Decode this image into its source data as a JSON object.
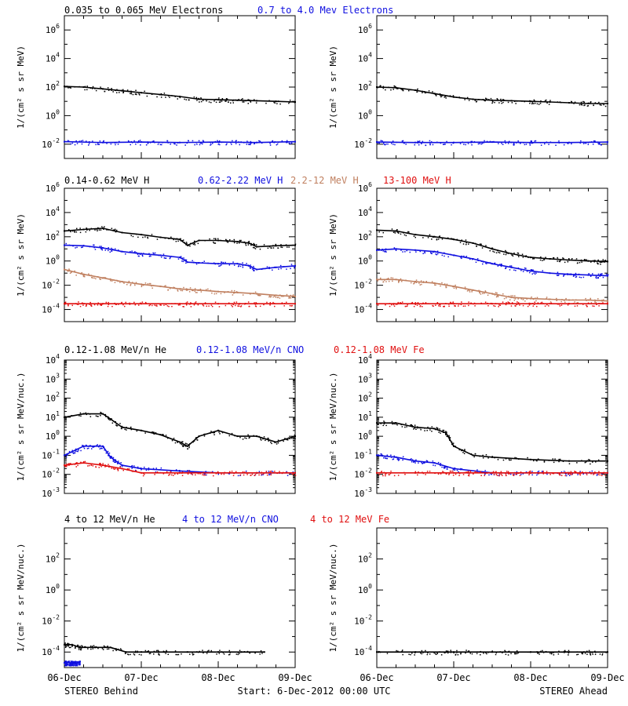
{
  "colors": {
    "black": "#000000",
    "blue": "#1010e0",
    "tan": "#c08060",
    "red": "#e01010"
  },
  "footer": {
    "left": "STEREO Behind",
    "center": "Start:  6-Dec-2012 00:00 UTC",
    "right": "STEREO Ahead"
  },
  "x_axis": {
    "ticks": [
      "06-Dec",
      "07-Dec",
      "08-Dec",
      "09-Dec"
    ],
    "range_days": [
      0,
      3
    ]
  },
  "chart_data": [
    {
      "type": "scatter",
      "row": 1,
      "panel": "STEREO Behind",
      "ylabel": "1/(cm² s sr MeV)",
      "yscale": "log",
      "ylim_exp": [
        -3,
        7
      ],
      "ytick_exps": [
        -2,
        0,
        2,
        4,
        6
      ],
      "titles": [
        {
          "text": "0.035 to 0.065 MeV Electrons",
          "color": "#000000"
        },
        {
          "text": "0.7 to 4.0 Mev Electrons",
          "color": "#1010e0"
        }
      ],
      "series": [
        {
          "color": "#000000",
          "x": [
            0,
            0.25,
            0.5,
            0.75,
            1.0,
            1.25,
            1.5,
            1.75,
            2.0,
            2.25,
            2.5,
            2.75,
            3.0
          ],
          "y": [
            110,
            100,
            75,
            55,
            40,
            30,
            22,
            14,
            13,
            12,
            11,
            10,
            9
          ]
        },
        {
          "color": "#1010e0",
          "x": [
            0,
            0.5,
            1.0,
            1.5,
            2.0,
            2.5,
            3.0
          ],
          "y": [
            0.015,
            0.013,
            0.014,
            0.013,
            0.014,
            0.013,
            0.015
          ]
        }
      ]
    },
    {
      "type": "scatter",
      "row": 1,
      "panel": "STEREO Ahead",
      "ylabel": "1/(cm² s sr MeV)",
      "yscale": "log",
      "ylim_exp": [
        -3,
        7
      ],
      "ytick_exps": [
        -2,
        0,
        2,
        4,
        6
      ],
      "titles": [],
      "series": [
        {
          "color": "#000000",
          "x": [
            0,
            0.25,
            0.5,
            0.75,
            1.0,
            1.25,
            1.5,
            1.75,
            2.0,
            2.25,
            2.5,
            2.75,
            3.0
          ],
          "y": [
            100,
            90,
            60,
            35,
            20,
            14,
            12,
            11,
            10,
            9,
            8,
            7,
            7
          ]
        },
        {
          "color": "#1010e0",
          "x": [
            0,
            0.5,
            1.0,
            1.5,
            2.0,
            2.5,
            3.0
          ],
          "y": [
            0.014,
            0.013,
            0.013,
            0.014,
            0.013,
            0.013,
            0.014
          ]
        }
      ]
    },
    {
      "type": "scatter",
      "row": 2,
      "panel": "STEREO Behind",
      "ylabel": "1/(cm² s sr MeV)",
      "yscale": "log",
      "ylim_exp": [
        -5,
        6
      ],
      "ytick_exps": [
        -4,
        -2,
        0,
        2,
        4,
        6
      ],
      "titles": [
        {
          "text": "0.14-0.62 MeV H",
          "color": "#000000"
        },
        {
          "text": "0.62-2.22 MeV H",
          "color": "#1010e0"
        },
        {
          "text": "2.2-12 MeV H",
          "color": "#c08060"
        },
        {
          "text": "13-100 MeV H",
          "color": "#e01010"
        }
      ],
      "series": [
        {
          "color": "#000000",
          "x": [
            0,
            0.25,
            0.5,
            0.75,
            1.0,
            1.25,
            1.5,
            1.6,
            1.75,
            2.0,
            2.25,
            2.4,
            2.5,
            2.75,
            3.0
          ],
          "y": [
            300,
            400,
            500,
            220,
            150,
            90,
            60,
            20,
            50,
            50,
            40,
            30,
            15,
            18,
            20
          ]
        },
        {
          "color": "#1010e0",
          "x": [
            0,
            0.25,
            0.5,
            0.75,
            1.0,
            1.25,
            1.5,
            1.6,
            1.75,
            2.0,
            2.25,
            2.4,
            2.5,
            2.75,
            3.0
          ],
          "y": [
            20,
            18,
            12,
            6,
            4,
            3,
            2,
            0.8,
            0.7,
            0.6,
            0.6,
            0.4,
            0.2,
            0.3,
            0.4
          ]
        },
        {
          "color": "#c08060",
          "x": [
            0,
            0.25,
            0.5,
            0.75,
            1.0,
            1.25,
            1.5,
            1.75,
            2.0,
            2.25,
            2.5,
            2.75,
            3.0
          ],
          "y": [
            0.2,
            0.08,
            0.04,
            0.02,
            0.012,
            0.008,
            0.005,
            0.004,
            0.003,
            0.0025,
            0.002,
            0.0015,
            0.0012
          ]
        },
        {
          "color": "#e01010",
          "x": [
            0,
            0.5,
            1.0,
            1.5,
            2.0,
            2.5,
            3.0
          ],
          "y": [
            0.0003,
            0.0003,
            0.0003,
            0.0003,
            0.0003,
            0.0003,
            0.0003
          ]
        }
      ]
    },
    {
      "type": "scatter",
      "row": 2,
      "panel": "STEREO Ahead",
      "ylabel": "1/(cm² s sr MeV)",
      "yscale": "log",
      "ylim_exp": [
        -5,
        6
      ],
      "ytick_exps": [
        -4,
        -2,
        0,
        2,
        4,
        6
      ],
      "titles": [],
      "series": [
        {
          "color": "#000000",
          "x": [
            0,
            0.25,
            0.5,
            0.75,
            1.0,
            1.25,
            1.5,
            1.75,
            2.0,
            2.25,
            2.5,
            2.75,
            3.0
          ],
          "y": [
            350,
            300,
            150,
            100,
            60,
            30,
            10,
            4,
            2,
            1.5,
            1.2,
            1.0,
            0.9
          ]
        },
        {
          "color": "#1010e0",
          "x": [
            0,
            0.25,
            0.5,
            0.75,
            1.0,
            1.25,
            1.5,
            1.75,
            2.0,
            2.25,
            2.5,
            2.75,
            3.0
          ],
          "y": [
            8,
            10,
            8,
            6,
            3,
            1.5,
            0.6,
            0.3,
            0.15,
            0.1,
            0.08,
            0.07,
            0.06
          ]
        },
        {
          "color": "#c08060",
          "x": [
            0,
            0.25,
            0.5,
            0.75,
            1.0,
            1.25,
            1.5,
            1.75,
            2.0,
            2.25,
            2.5,
            2.75,
            3.0
          ],
          "y": [
            0.03,
            0.03,
            0.02,
            0.015,
            0.008,
            0.004,
            0.002,
            0.001,
            0.0008,
            0.0007,
            0.0006,
            0.0006,
            0.0005
          ]
        },
        {
          "color": "#e01010",
          "x": [
            0,
            0.5,
            1.0,
            1.5,
            2.0,
            2.5,
            3.0
          ],
          "y": [
            0.0003,
            0.0003,
            0.0003,
            0.0003,
            0.0003,
            0.0003,
            0.0003
          ]
        }
      ]
    },
    {
      "type": "scatter",
      "row": 3,
      "panel": "STEREO Behind",
      "ylabel": "1/(cm² s sr MeV/nuc.)",
      "yscale": "log",
      "ylim_exp": [
        -3,
        4
      ],
      "ytick_exps": [
        -3,
        -2,
        -1,
        0,
        1,
        2,
        3,
        4
      ],
      "titles": [
        {
          "text": "0.12-1.08 MeV/n He",
          "color": "#000000"
        },
        {
          "text": "0.12-1.08 MeV/n CNO",
          "color": "#1010e0"
        },
        {
          "text": "0.12-1.08 MeV Fe",
          "color": "#e01010"
        }
      ],
      "series": [
        {
          "color": "#000000",
          "x": [
            0,
            0.25,
            0.5,
            0.6,
            0.75,
            1.0,
            1.25,
            1.5,
            1.6,
            1.75,
            2.0,
            2.25,
            2.5,
            2.75,
            3.0
          ],
          "y": [
            10,
            15,
            15,
            8,
            3,
            2,
            1.2,
            0.5,
            0.3,
            1.0,
            2.0,
            1.0,
            1.0,
            0.5,
            1.0
          ]
        },
        {
          "color": "#1010e0",
          "x": [
            0,
            0.25,
            0.5,
            0.6,
            0.75,
            1.0,
            1.5,
            2.0,
            2.5,
            3.0
          ],
          "y": [
            0.1,
            0.3,
            0.3,
            0.08,
            0.03,
            0.02,
            0.015,
            0.012,
            0.012,
            0.012
          ]
        },
        {
          "color": "#e01010",
          "x": [
            0,
            0.25,
            0.5,
            0.75,
            1.0,
            1.5,
            2.0,
            2.5,
            3.0
          ],
          "y": [
            0.03,
            0.04,
            0.03,
            0.02,
            0.012,
            0.012,
            0.012,
            0.012,
            0.012
          ]
        }
      ]
    },
    {
      "type": "scatter",
      "row": 3,
      "panel": "STEREO Ahead",
      "ylabel": "1/(cm² s sr MeV/nuc.)",
      "yscale": "log",
      "ylim_exp": [
        -3,
        4
      ],
      "ytick_exps": [
        -3,
        -2,
        -1,
        0,
        1,
        2,
        3,
        4
      ],
      "titles": [],
      "series": [
        {
          "color": "#000000",
          "x": [
            0,
            0.25,
            0.5,
            0.75,
            0.9,
            1.0,
            1.25,
            1.5,
            2.0,
            2.5,
            3.0
          ],
          "y": [
            5,
            5,
            3,
            2.5,
            1.5,
            0.3,
            0.1,
            0.08,
            0.06,
            0.05,
            0.05
          ]
        },
        {
          "color": "#1010e0",
          "x": [
            0,
            0.25,
            0.5,
            0.75,
            1.0,
            1.5,
            2.0,
            2.5,
            3.0
          ],
          "y": [
            0.1,
            0.08,
            0.05,
            0.04,
            0.02,
            0.012,
            0.012,
            0.012,
            0.012
          ]
        },
        {
          "color": "#e01010",
          "x": [
            0,
            0.5,
            1.0,
            1.5,
            2.0,
            2.5,
            3.0
          ],
          "y": [
            0.012,
            0.012,
            0.012,
            0.012,
            0.012,
            0.012,
            0.012
          ]
        }
      ]
    },
    {
      "type": "scatter",
      "row": 4,
      "panel": "STEREO Behind",
      "ylabel": "1/(cm² s sr MeV/nuc.)",
      "yscale": "log",
      "ylim_exp": [
        -5,
        4
      ],
      "ytick_exps": [
        -4,
        -2,
        0,
        2
      ],
      "titles": [
        {
          "text": "4 to 12 MeV/n He",
          "color": "#000000"
        },
        {
          "text": "4 to 12 MeV/n CNO",
          "color": "#1010e0"
        },
        {
          "text": "4 to 12 MeV Fe",
          "color": "#e01010"
        }
      ],
      "series": [
        {
          "color": "#000000",
          "x": [
            0,
            0.1,
            0.2,
            0.4,
            0.6,
            0.8,
            1.0,
            1.3,
            1.6,
            2.0,
            2.3,
            2.6
          ],
          "y": [
            0.0003,
            0.0003,
            0.0002,
            0.0002,
            0.0002,
            0.0001,
            0.0001,
            0.0001,
            0.0001,
            0.0001,
            0.0001,
            0.0001
          ]
        },
        {
          "color": "#1010e0",
          "x": [
            0,
            0.1,
            0.2
          ],
          "y": [
            2e-05,
            2e-05,
            2e-05
          ]
        }
      ]
    },
    {
      "type": "scatter",
      "row": 4,
      "panel": "STEREO Ahead",
      "ylabel": "1/(cm² s sr MeV/nuc.)",
      "yscale": "log",
      "ylim_exp": [
        -5,
        4
      ],
      "ytick_exps": [
        -4,
        -2,
        0,
        2
      ],
      "titles": [],
      "series": [
        {
          "color": "#000000",
          "x": [
            0,
            0.5,
            1.0,
            1.5,
            2.0,
            2.5,
            3.0
          ],
          "y": [
            0.0001,
            0.0001,
            0.0001,
            0.0001,
            0.0001,
            0.0001,
            0.0001
          ]
        }
      ]
    }
  ]
}
